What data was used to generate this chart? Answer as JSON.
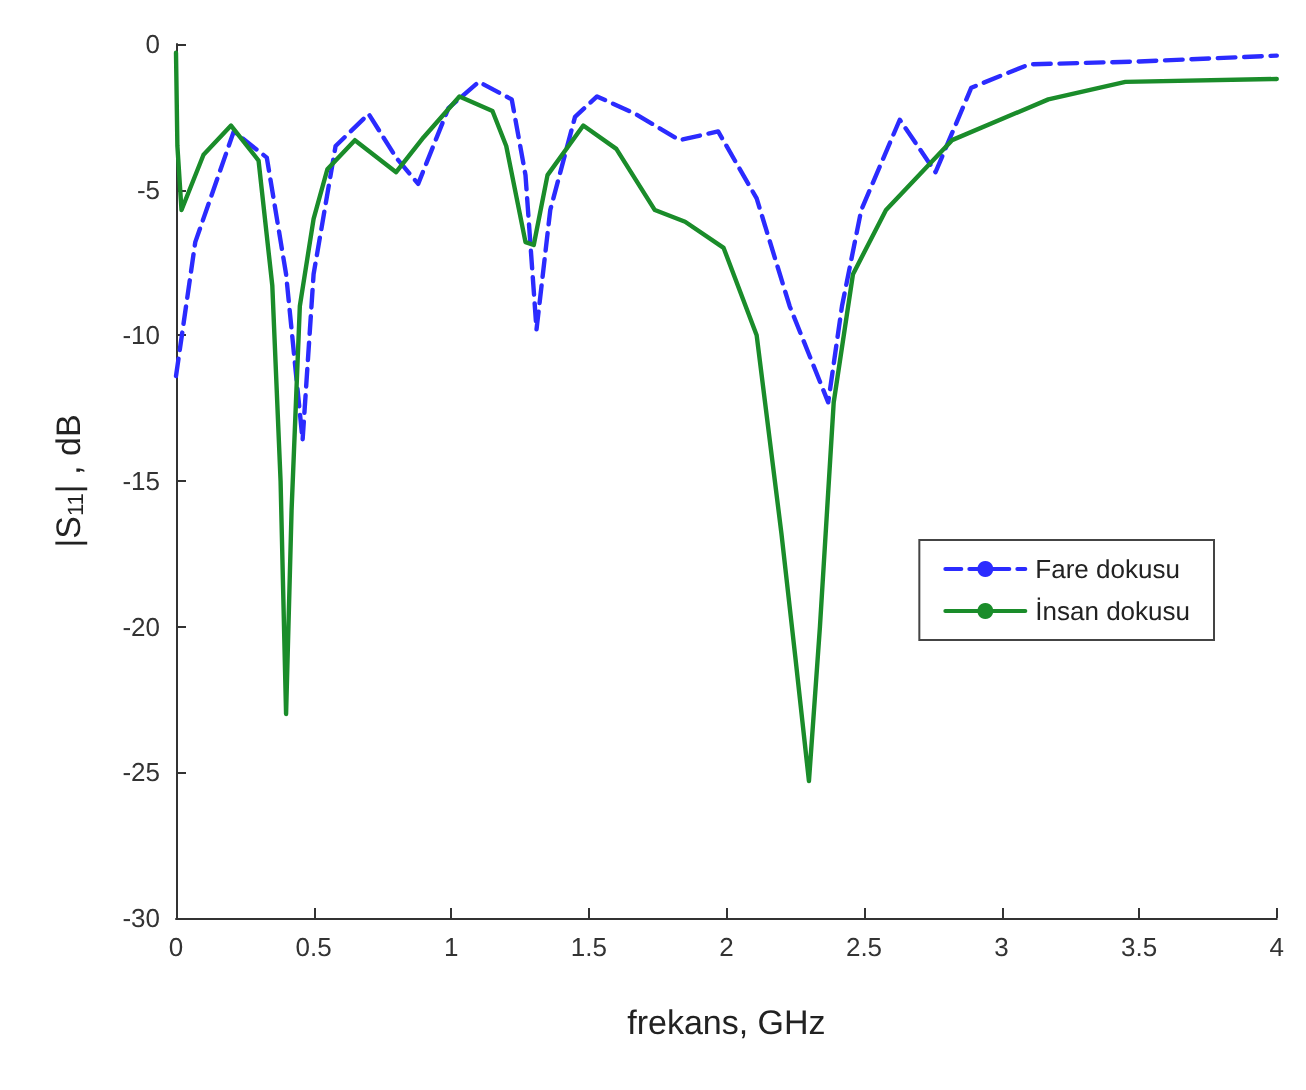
{
  "chart_data": {
    "type": "line",
    "xlabel": "frekans, GHz",
    "ylabel": "|S$_{11}$| , dB",
    "xlim": [
      0,
      4
    ],
    "ylim": [
      -30,
      0
    ],
    "xticks": [
      0,
      0.5,
      1,
      1.5,
      2,
      2.5,
      3,
      3.5,
      4
    ],
    "yticks": [
      -30,
      -25,
      -20,
      -15,
      -10,
      -5,
      0
    ],
    "grid": false,
    "legend": "right",
    "marker": "none",
    "series": [
      {
        "name": "Fare dokusu",
        "color": "#2b2bff",
        "line_style": "dashed",
        "x": [
          0,
          0.07,
          0.21,
          0.33,
          0.4,
          0.46,
          0.5,
          0.58,
          0.7,
          0.8,
          0.88,
          0.99,
          1.1,
          1.22,
          1.27,
          1.31,
          1.36,
          1.45,
          1.53,
          1.67,
          1.83,
          1.97,
          2.11,
          2.23,
          2.37,
          2.42,
          2.49,
          2.63,
          2.76,
          2.89,
          3.1,
          3.5,
          4
        ],
        "values": [
          -11.4,
          -6.8,
          -3.0,
          -3.9,
          -7.9,
          -13.6,
          -7.9,
          -3.5,
          -2.4,
          -3.9,
          -4.8,
          -2.2,
          -1.3,
          -1.9,
          -4.5,
          -9.8,
          -5.7,
          -2.5,
          -1.8,
          -2.4,
          -3.3,
          -3.0,
          -5.3,
          -9.0,
          -12.3,
          -9.0,
          -5.7,
          -2.6,
          -4.4,
          -1.5,
          -0.7,
          -0.6,
          -0.4
        ]
      },
      {
        "name": "İnsan dokusu",
        "color": "#1a8c2a",
        "line_style": "solid",
        "x": [
          0,
          0.005,
          0.02,
          0.1,
          0.2,
          0.3,
          0.35,
          0.38,
          0.4,
          0.42,
          0.45,
          0.5,
          0.55,
          0.65,
          0.8,
          0.9,
          1.03,
          1.15,
          1.2,
          1.27,
          1.3,
          1.35,
          1.48,
          1.6,
          1.74,
          1.85,
          1.99,
          2.11,
          2.2,
          2.25,
          2.3,
          2.34,
          2.39,
          2.46,
          2.58,
          2.82,
          3.17,
          3.45,
          4
        ],
        "values": [
          -0.3,
          -3.5,
          -5.7,
          -3.8,
          -2.8,
          -4.0,
          -8.3,
          -15,
          -23,
          -16,
          -9,
          -6,
          -4.3,
          -3.3,
          -4.4,
          -3.2,
          -1.8,
          -2.3,
          -3.5,
          -6.8,
          -6.9,
          -4.5,
          -2.8,
          -3.6,
          -5.7,
          -6.1,
          -7.0,
          -10,
          -16.8,
          -21,
          -25.3,
          -20,
          -12.3,
          -7.9,
          -5.7,
          -3.3,
          -1.9,
          -1.3,
          -1.2
        ]
      }
    ]
  }
}
